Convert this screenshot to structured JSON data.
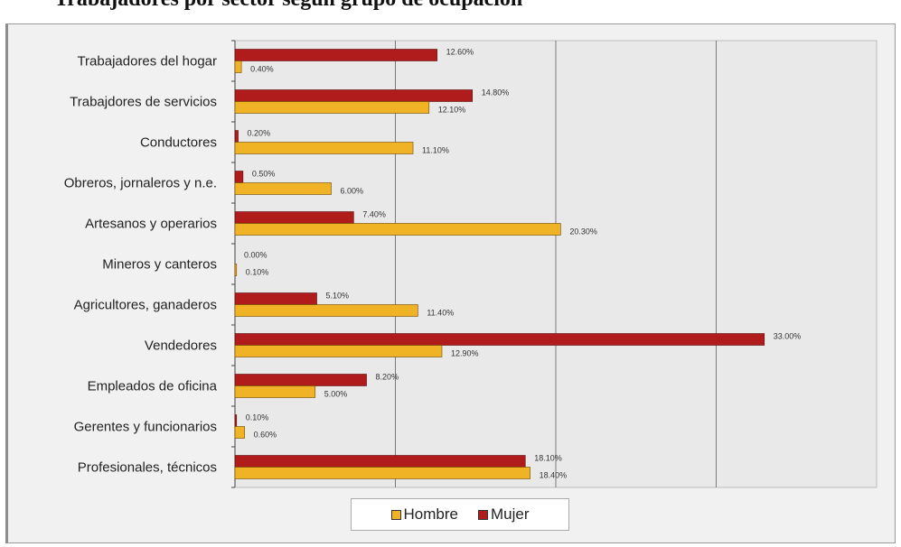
{
  "page": {
    "title": "Trabajadores por sector según grupo de ocupación"
  },
  "legend": [
    {
      "label": "Hombre",
      "color": "#f0b325"
    },
    {
      "label": "Mujer",
      "color": "#b01c1c"
    }
  ],
  "chart_data": {
    "type": "bar",
    "orientation": "horizontal",
    "categories": [
      "Trabajadores del hogar",
      "Trabajdores de servicios",
      "Conductores",
      "Obreros, jornaleros y n.e.",
      "Artesanos y operarios",
      "Mineros y canteros",
      "Agricultores, ganaderos",
      "Vendedores",
      "Empleados de oficina",
      "Gerentes y funcionarios",
      "Profesionales, técnicos"
    ],
    "series": [
      {
        "name": "Hombre",
        "color": "#f0b325",
        "values": [
          0.4,
          12.1,
          11.1,
          6.0,
          20.3,
          0.1,
          11.4,
          12.9,
          5.0,
          0.6,
          18.4
        ],
        "labels": [
          "0.40%",
          "12.10%",
          "11.10%",
          "6.00%",
          "20.30%",
          "0.10%",
          "11.40%",
          "12.90%",
          "5.00%",
          "0.60%",
          "18.40%"
        ]
      },
      {
        "name": "Mujer",
        "color": "#b01c1c",
        "values": [
          12.6,
          14.8,
          0.2,
          0.5,
          7.4,
          0.0,
          5.1,
          33.0,
          8.2,
          0.1,
          18.1
        ],
        "labels": [
          "12.60%",
          "14.80%",
          "0.20%",
          "0.50%",
          "7.40%",
          "0.00%",
          "5.10%",
          "33.00%",
          "8.20%",
          "0.10%",
          "18.10%"
        ]
      }
    ],
    "xlim": [
      0,
      40
    ],
    "grid": true,
    "legend_position": "bottom"
  }
}
